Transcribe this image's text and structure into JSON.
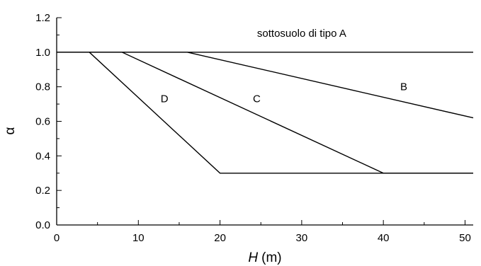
{
  "chart_data": {
    "type": "line",
    "xlabel_var": "H",
    "xlabel_unit": "(m)",
    "ylabel": "α",
    "xlim": [
      0,
      51
    ],
    "ylim": [
      0,
      1.2
    ],
    "x_ticks": [
      "0",
      "10",
      "20",
      "30",
      "40",
      "50"
    ],
    "y_ticks": [
      "0.0",
      "0.2",
      "0.4",
      "0.6",
      "0.8",
      "1.0",
      "1.2"
    ],
    "grid": false,
    "series": [
      {
        "name": "sottosuolo di tipo A",
        "points": [
          [
            0,
            1.0
          ],
          [
            51,
            1.0
          ]
        ],
        "label_at": [
          30,
          1.09
        ],
        "anchor": "middle"
      },
      {
        "name": "B",
        "points": [
          [
            0,
            1.0
          ],
          [
            16,
            1.0
          ],
          [
            51,
            0.62
          ]
        ],
        "label_at": [
          42.5,
          0.78
        ],
        "anchor": "middle"
      },
      {
        "name": "C",
        "points": [
          [
            0,
            1.0
          ],
          [
            8,
            1.0
          ],
          [
            40,
            0.3
          ],
          [
            51,
            0.3
          ]
        ],
        "label_at": [
          24.5,
          0.71
        ],
        "anchor": "middle"
      },
      {
        "name": "D",
        "points": [
          [
            0,
            1.0
          ],
          [
            4,
            1.0
          ],
          [
            20,
            0.3
          ],
          [
            51,
            0.3
          ]
        ],
        "label_at": [
          13.2,
          0.71
        ],
        "anchor": "middle"
      }
    ]
  }
}
